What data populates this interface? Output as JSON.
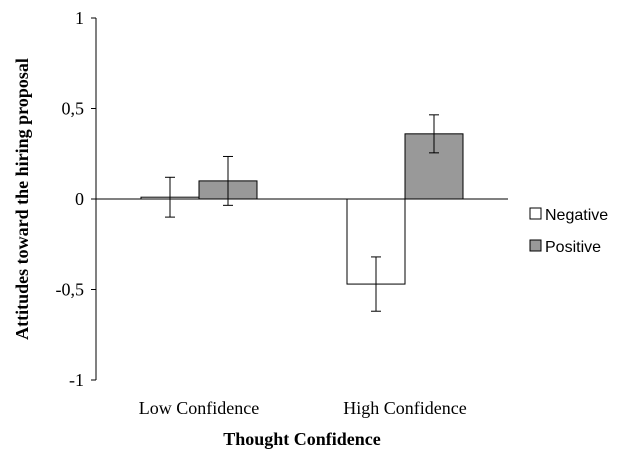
{
  "chart_data": {
    "type": "bar",
    "categories": [
      "Low Confidence",
      "High Confidence"
    ],
    "series": [
      {
        "name": "Negative",
        "values": [
          0.01,
          -0.47
        ],
        "error": [
          0.11,
          0.15
        ],
        "color": "#ffffff"
      },
      {
        "name": "Positive",
        "values": [
          0.1,
          0.36
        ],
        "error": [
          0.135,
          0.105
        ],
        "color": "#999999"
      }
    ],
    "xlabel": "Thought Confidence",
    "ylabel": "Attitudes toward the hiring proposal",
    "ylim": [
      -1,
      1
    ],
    "yticks": [
      1,
      0.5,
      0,
      -0.5,
      -1
    ],
    "ytick_labels": [
      "1",
      "0,5",
      "0",
      "-0,5",
      "-1"
    ],
    "grid": false,
    "legend_position": "right"
  }
}
